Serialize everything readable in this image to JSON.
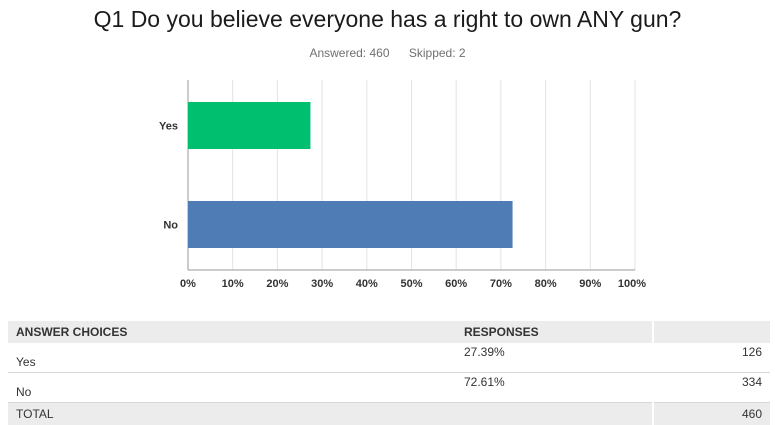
{
  "title": "Q1 Do you believe everyone has a right to own ANY gun?",
  "answered": "Answered: 460",
  "skipped": "Skipped: 2",
  "chart_data": {
    "type": "bar",
    "orientation": "horizontal",
    "categories": [
      "Yes",
      "No"
    ],
    "values": [
      27.39,
      72.61
    ],
    "colors": [
      "#00bf6f",
      "#507cb6"
    ],
    "xlim": [
      0,
      100
    ],
    "xticks": [
      "0%",
      "10%",
      "20%",
      "30%",
      "40%",
      "50%",
      "60%",
      "70%",
      "80%",
      "90%",
      "100%"
    ],
    "grid": true
  },
  "table": {
    "headers": [
      "ANSWER CHOICES",
      "RESPONSES"
    ],
    "rows": [
      {
        "choice": "Yes",
        "percent": "27.39%",
        "count": "126"
      },
      {
        "choice": "No",
        "percent": "72.61%",
        "count": "334"
      }
    ],
    "total_label": "TOTAL",
    "total_count": "460"
  }
}
